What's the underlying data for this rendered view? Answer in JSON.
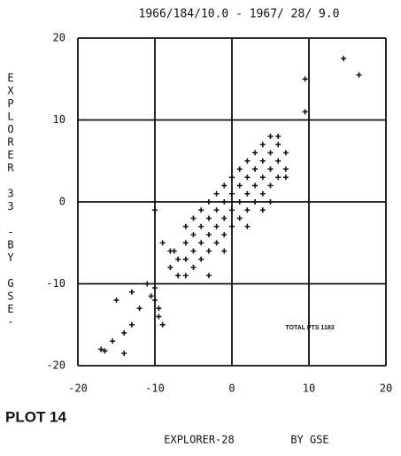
{
  "chart_data": {
    "type": "scatter",
    "title": "1966/184/10.0 - 1967/ 28/ 9.0",
    "y_label": "EXPLORER 33 -BY GSE-",
    "x_label": "EXPLORER-28",
    "x_label_suffix": "BY GSE",
    "annotation": "TOTAL PTS 1183",
    "plot_label": "PLOT 14",
    "color": "#111111",
    "marker": "+",
    "grid": true,
    "xlim": [
      -20,
      20
    ],
    "ylim": [
      -20,
      20
    ],
    "xticks": [
      -20,
      -10,
      0,
      10,
      20
    ],
    "yticks": [
      -20,
      -10,
      0,
      10,
      20
    ],
    "x": [
      14.5,
      16.5,
      9.5,
      9.5,
      -17,
      -16.5,
      -15.5,
      -14,
      -13,
      -14,
      -12,
      -15,
      -13,
      -11,
      -10,
      -10,
      -9.5,
      -9.5,
      -10.5,
      -9,
      -8,
      -7,
      -7.5,
      -6,
      -6,
      -5,
      -5,
      -4,
      -4,
      -3,
      -3,
      -2,
      -2,
      -1,
      -1,
      0,
      0,
      1,
      1,
      2,
      2,
      3,
      3,
      4,
      4,
      5,
      5,
      6,
      6,
      7,
      7,
      6,
      5,
      4,
      3,
      2,
      1,
      0,
      -1,
      -2,
      -3,
      -4,
      -5,
      -6,
      -7,
      -8,
      -6,
      -5,
      -4,
      -3,
      -2,
      -1,
      0,
      1,
      2,
      3,
      4,
      5,
      6,
      -10,
      -3,
      2,
      4,
      -1,
      -9,
      7,
      5
    ],
    "y": [
      17.5,
      15.5,
      15,
      11,
      -18,
      -18.2,
      -17,
      -16,
      -15,
      -18.5,
      -13,
      -12,
      -11,
      -10,
      -10.5,
      -12,
      -13,
      -14,
      -11.5,
      -15,
      -8,
      -7,
      -6,
      -7,
      -5,
      -6,
      -4,
      -5,
      -3,
      -4,
      -2,
      -3,
      -1,
      -2,
      0,
      -1,
      1,
      0,
      2,
      1,
      3,
      2,
      4,
      3,
      5,
      4,
      6,
      5,
      7,
      6,
      4,
      3,
      2,
      1,
      0,
      -1,
      -2,
      -3,
      -4,
      -5,
      -6,
      -7,
      -8,
      -9,
      -9,
      -6,
      -3,
      -2,
      -1,
      0,
      1,
      2,
      3,
      4,
      5,
      6,
      7,
      8,
      8,
      -1,
      -9,
      -3,
      -1,
      -6,
      -5,
      3,
      0
    ]
  }
}
